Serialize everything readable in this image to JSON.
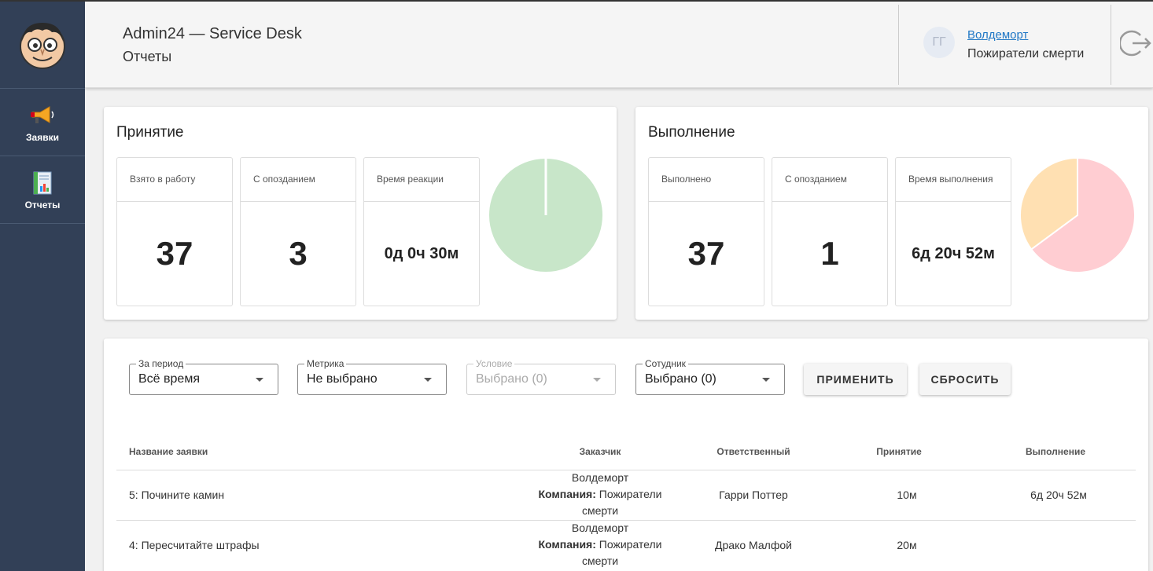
{
  "sidebar": {
    "items": [
      {
        "label": "Заявки",
        "icon": "megaphone-icon"
      },
      {
        "label": "Отчеты",
        "icon": "report-icon"
      }
    ]
  },
  "header": {
    "title": "Admin24 — Service Desk",
    "subtitle": "Отчеты",
    "avatar_initials": "ГГ",
    "user_name": "Волдеморт",
    "user_org": "Пожиратели смерти"
  },
  "acceptance": {
    "title": "Принятие",
    "stats": [
      {
        "label": "Взято в работу",
        "value": "37"
      },
      {
        "label": "С опозданием",
        "value": "3"
      },
      {
        "label": "Время реакции",
        "value": "0д 0ч 30м"
      }
    ]
  },
  "completion": {
    "title": "Выполнение",
    "stats": [
      {
        "label": "Выполнено",
        "value": "37"
      },
      {
        "label": "С опозданием",
        "value": "1"
      },
      {
        "label": "Время выполнения",
        "value": "6д 20ч 52м"
      }
    ]
  },
  "chart_data": [
    {
      "type": "pie",
      "title": "",
      "values": [
        37,
        0
      ],
      "colors": [
        "#c8e6c9",
        "#ffffff"
      ]
    },
    {
      "type": "pie",
      "title": "",
      "values": [
        24,
        13
      ],
      "colors": [
        "#ffcdd2",
        "#ffe0b2"
      ]
    }
  ],
  "filters": {
    "period": {
      "label": "За период",
      "value": "Всё время"
    },
    "metric": {
      "label": "Метрика",
      "value": "Не выбрано"
    },
    "condition": {
      "label": "Условие",
      "value": "Выбрано (0)"
    },
    "employee": {
      "label": "Сотудник",
      "value": "Выбрано (0)"
    },
    "apply": "ПРИМЕНИТЬ",
    "reset": "СБРОСИТЬ"
  },
  "table": {
    "headers": [
      "Название заявки",
      "Заказчик",
      "Ответственный",
      "Принятие",
      "Выполнение"
    ],
    "company_label": "Компания:",
    "rows": [
      {
        "name": "5: Почините камин",
        "customer": "Волдеморт",
        "company": "Пожиратели",
        "company2": "смерти",
        "responsible": "Гарри Поттер",
        "accept": "10м",
        "done": "6д 20ч 52м"
      },
      {
        "name": "4: Пересчитайте штрафы",
        "customer": "Волдеморт",
        "company": "Пожиратели",
        "company2": "смерти",
        "responsible": "Драко Малфой",
        "accept": "20м",
        "done": ""
      }
    ]
  }
}
